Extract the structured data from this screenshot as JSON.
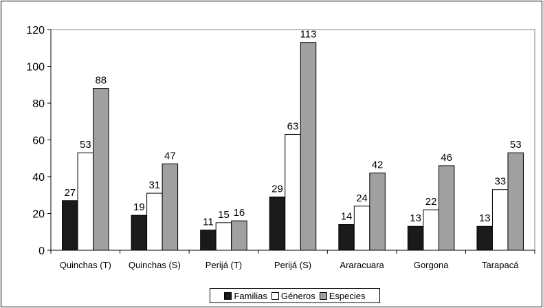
{
  "chart_data": {
    "type": "bar",
    "title": "",
    "xlabel": "",
    "ylabel": "",
    "categories": [
      "Quinchas (T)",
      "Quinchas (S)",
      "Perijá (T)",
      "Perijá (S)",
      "Araracuara",
      "Gorgona",
      "Tarapacá"
    ],
    "series": [
      {
        "name": "Familias",
        "color": "#1a1a1a",
        "values": [
          27,
          19,
          11,
          29,
          14,
          13,
          13
        ]
      },
      {
        "name": "Géneros",
        "color": "#ffffff",
        "values": [
          53,
          31,
          15,
          63,
          24,
          22,
          33
        ]
      },
      {
        "name": "Especies",
        "color": "#a0a0a0",
        "values": [
          88,
          47,
          16,
          113,
          42,
          46,
          53
        ]
      }
    ],
    "ylim": [
      0,
      120
    ],
    "yticks": [
      0,
      20,
      40,
      60,
      80,
      100,
      120
    ],
    "grid": false,
    "legend_position": "bottom-center",
    "data_labels": true
  }
}
